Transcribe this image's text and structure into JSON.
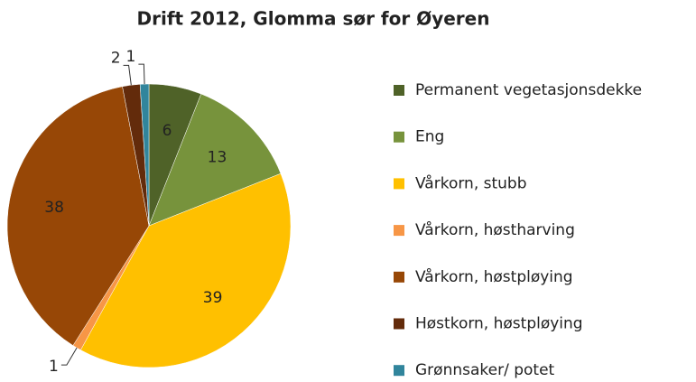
{
  "chart_data": {
    "type": "pie",
    "title": "Drift 2012, Glomma sør for Øyeren",
    "categories": [
      "Permanent vegetasjonsdekke",
      "Eng",
      "Vårkorn, stubb",
      "Vårkorn, høstharving",
      "Vårkorn, høstpløying",
      "Høstkorn, høstpløying",
      "Grønnsaker/ potet"
    ],
    "values": [
      6,
      13,
      39,
      1,
      38,
      2,
      1
    ],
    "colors": [
      "#4f6228",
      "#77933c",
      "#ffc000",
      "#f79646",
      "#974706",
      "#632b0b",
      "#31859c"
    ],
    "legend": "right"
  }
}
